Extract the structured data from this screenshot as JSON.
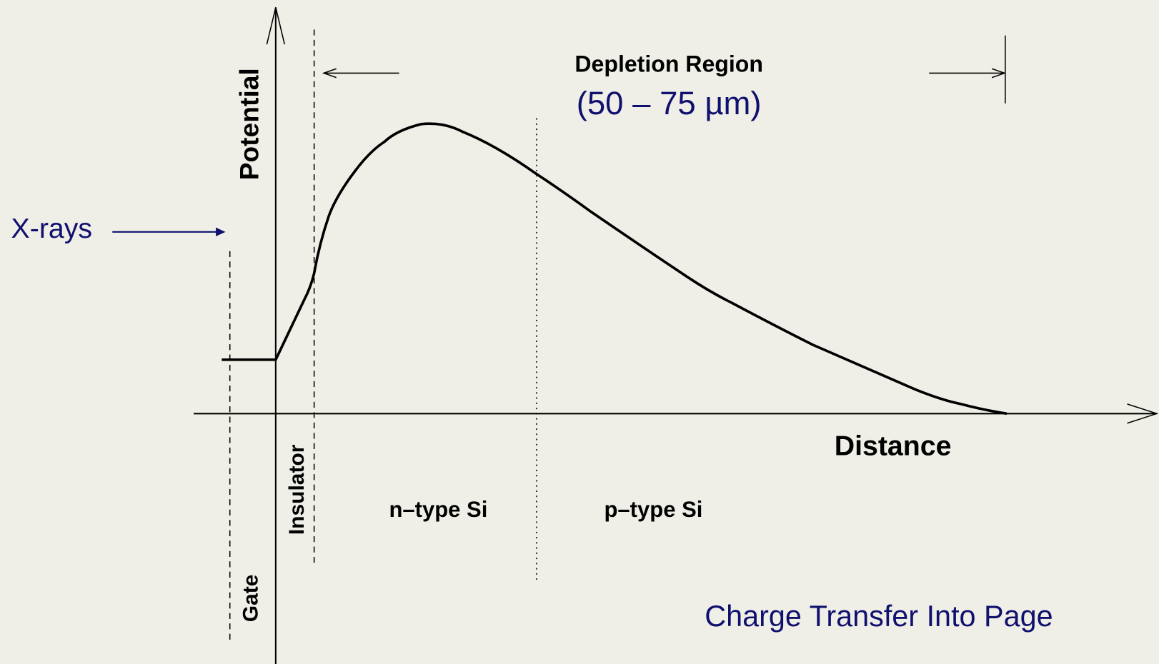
{
  "labels": {
    "y_axis": "Potential",
    "x_axis": "Distance",
    "region": "Depletion Region",
    "region_size": "(50 – 75 µm)",
    "source": "X-rays",
    "insulator": "Insulator",
    "gate": "Gate",
    "n_type": "n–type Si",
    "p_type": "p–type Si",
    "note": "Charge Transfer Into Page"
  }
}
